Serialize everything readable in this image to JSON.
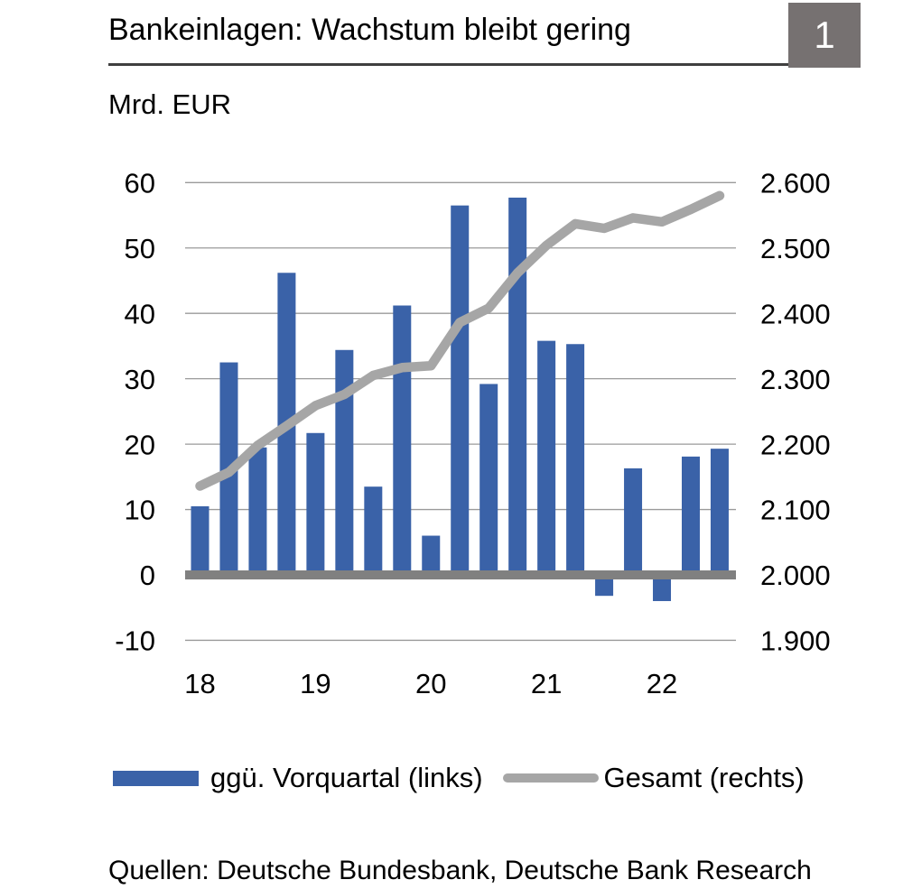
{
  "header": {
    "title": "Bankeinlagen: Wachstum bleibt gering",
    "figure_number": "1"
  },
  "subtitle": "Mrd. EUR",
  "legend": {
    "bars_label": "ggü. Vorquartal (links)",
    "line_label": "Gesamt (rechts)"
  },
  "footer": {
    "sources": "Quellen: Deutsche Bundesbank, Deutsche Bank Research"
  },
  "colors": {
    "bar": "#3A62A8",
    "line": "#A6A6A6",
    "zero_baseline": "#808080",
    "gridline": "#9A9A9A",
    "badge_background": "#767171",
    "badge_text": "#FFFFFF",
    "text": "#000000"
  },
  "chart_data": {
    "type": "bar",
    "subtype": "bar-with-line-overlay",
    "title": "Bankeinlagen: Wachstum bleibt gering",
    "unit": "Mrd. EUR",
    "x": [
      "2018Q1",
      "2018Q2",
      "2018Q3",
      "2018Q4",
      "2019Q1",
      "2019Q2",
      "2019Q3",
      "2019Q4",
      "2020Q1",
      "2020Q2",
      "2020Q3",
      "2020Q4",
      "2021Q1",
      "2021Q2",
      "2021Q3",
      "2021Q4",
      "2022Q1",
      "2022Q2",
      "2022Q3"
    ],
    "series": [
      {
        "name": "ggü. Vorquartal (links)",
        "type": "bar",
        "axis": "left",
        "values": [
          10.5,
          32.5,
          19.5,
          46.2,
          21.7,
          34.4,
          13.5,
          41.2,
          6.0,
          56.5,
          29.2,
          57.7,
          35.8,
          35.3,
          -3.2,
          16.3,
          -4.0,
          18.1,
          19.3
        ]
      },
      {
        "name": "Gesamt (rechts)",
        "type": "line",
        "axis": "right",
        "values": [
          2136,
          2157,
          2198,
          2228,
          2259,
          2276,
          2305,
          2317,
          2320,
          2386,
          2408,
          2462,
          2504,
          2537,
          2530,
          2546,
          2540,
          2559,
          2580
        ]
      }
    ],
    "left_axis": {
      "range": [
        -10,
        60
      ],
      "ticks": [
        {
          "label": "60",
          "value": 60
        },
        {
          "label": "50",
          "value": 50
        },
        {
          "label": "40",
          "value": 40
        },
        {
          "label": "30",
          "value": 30
        },
        {
          "label": "20",
          "value": 20
        },
        {
          "label": "10",
          "value": 10
        },
        {
          "label": "0",
          "value": 0
        },
        {
          "label": "-10",
          "value": -10
        }
      ]
    },
    "right_axis": {
      "range": [
        1900,
        2600
      ],
      "ticks": [
        {
          "label": "2.600",
          "value": 2600
        },
        {
          "label": "2.500",
          "value": 2500
        },
        {
          "label": "2.400",
          "value": 2400
        },
        {
          "label": "2.300",
          "value": 2300
        },
        {
          "label": "2.200",
          "value": 2200
        },
        {
          "label": "2.100",
          "value": 2100
        },
        {
          "label": "2.000",
          "value": 2000
        },
        {
          "label": "1.900",
          "value": 1900
        }
      ]
    },
    "x_axis": {
      "ticks": [
        {
          "label": "18",
          "quarter_index": 0
        },
        {
          "label": "19",
          "quarter_index": 4
        },
        {
          "label": "20",
          "quarter_index": 8
        },
        {
          "label": "21",
          "quarter_index": 12
        },
        {
          "label": "22",
          "quarter_index": 16
        }
      ]
    },
    "grid": true,
    "legend_position": "bottom"
  }
}
